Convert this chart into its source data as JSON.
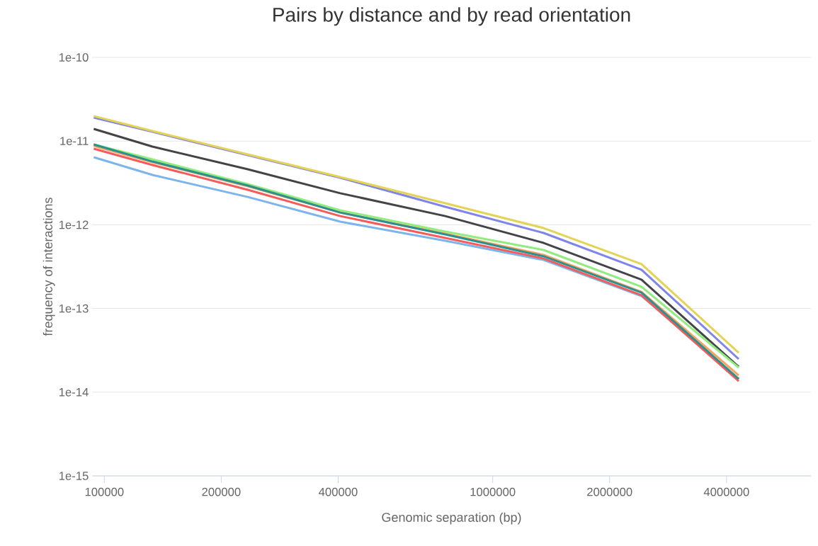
{
  "chart_data": {
    "type": "line",
    "title": "Pairs by distance and by read orientation",
    "xlabel": "Genomic separation (bp)",
    "ylabel": "frequency of interactions",
    "x": [
      93900,
      133000,
      234000,
      405000,
      755000,
      1353000,
      2416000,
      4300000
    ],
    "series": [
      {
        "color": "#7cb5ec",
        "values": [
          6.41e-12,
          3.94e-12,
          2.15e-12,
          1.09e-12,
          6.44e-13,
          3.8e-13,
          1.41e-13,
          1.44e-14
        ]
      },
      {
        "color": "#8085e9",
        "values": [
          1.91e-11,
          1.29e-11,
          6.81e-12,
          3.65e-12,
          1.64e-12,
          7.98e-13,
          2.9e-13,
          2.49e-14
        ]
      },
      {
        "color": "#e4d354",
        "values": [
          1.99e-11,
          1.32e-11,
          6.93e-12,
          3.72e-12,
          1.81e-12,
          9.14e-13,
          3.39e-13,
          2.96e-14
        ]
      },
      {
        "color": "#434348",
        "values": [
          1.4e-11,
          8.59e-12,
          4.6e-12,
          2.38e-12,
          1.27e-12,
          6.07e-13,
          2.21e-13,
          2.01e-14
        ]
      },
      {
        "color": "#90ed7d",
        "values": [
          9.1e-12,
          6.05e-12,
          3.06e-12,
          1.49e-12,
          8.3e-13,
          5e-13,
          1.82e-13,
          1.97e-14
        ]
      },
      {
        "color": "#f7a35c",
        "values": [
          8.75e-12,
          5.6e-12,
          2.88e-12,
          1.4e-12,
          7.82e-13,
          4.37e-13,
          1.58e-13,
          1.59e-14
        ]
      },
      {
        "color": "#f45b5b",
        "values": [
          8.11e-12,
          5.18e-12,
          2.62e-12,
          1.27e-12,
          6.97e-13,
          3.95e-13,
          1.44e-13,
          1.36e-14
        ]
      },
      {
        "color": "#2b908f",
        "values": [
          9.1e-12,
          5.7e-12,
          2.94e-12,
          1.4e-12,
          7.67e-13,
          4.2e-13,
          1.55e-13,
          1.44e-14
        ]
      }
    ],
    "xlim": [
      93000,
      6600000
    ],
    "ylim": [
      1e-15,
      1e-10
    ],
    "xticks": [
      100000,
      200000,
      400000,
      1000000,
      2000000,
      4000000
    ],
    "yticks": [
      {
        "value": 1e-15,
        "label": "1e-15"
      },
      {
        "value": 1e-14,
        "label": "1e-14"
      },
      {
        "value": 1e-13,
        "label": "1e-13"
      },
      {
        "value": 1e-12,
        "label": "1e-12"
      },
      {
        "value": 1e-11,
        "label": "1e-11"
      },
      {
        "value": 1e-10,
        "label": "1e-10"
      }
    ],
    "log": "xy",
    "grid": "y",
    "legend": false,
    "marker": "none",
    "line_style": "solid"
  }
}
